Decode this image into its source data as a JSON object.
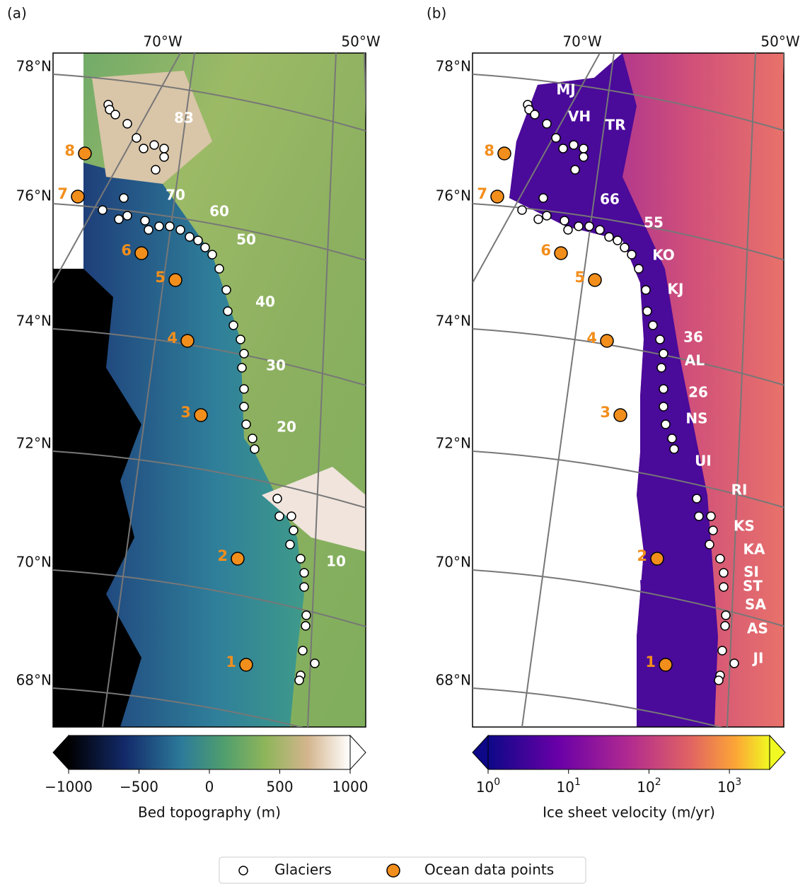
{
  "panels": [
    {
      "label": "(a)",
      "lon_labels": [
        "70°W",
        "50°W"
      ],
      "lat_labels": [
        "78°N",
        "76°N",
        "74°N",
        "72°N",
        "70°N",
        "68°N"
      ],
      "glacier_labels": [
        "83",
        "70",
        "60",
        "50",
        "40",
        "30",
        "20",
        "10"
      ],
      "ocean_labels": [
        "1",
        "2",
        "3",
        "4",
        "5",
        "6",
        "7",
        "8"
      ],
      "colorbar": {
        "label": "Bed topography (m)",
        "scale": "linear",
        "lim": [
          -1000,
          1000
        ],
        "ticks": [
          {
            "value": -1000,
            "label": "−1000"
          },
          {
            "value": -500,
            "label": "−500"
          },
          0,
          500,
          1000
        ]
      }
    },
    {
      "label": "(b)",
      "lon_labels": [
        "70°W",
        "50°W"
      ],
      "lat_labels": [
        "78°N",
        "76°N",
        "74°N",
        "72°N",
        "70°N",
        "68°N"
      ],
      "glacier_labels": [
        "MJ",
        "VH",
        "TR",
        "66",
        "55",
        "KO",
        "KJ",
        "36",
        "AL",
        "26",
        "NS",
        "UI",
        "RI",
        "KS",
        "KA",
        "SI",
        "ST",
        "SA",
        "AS",
        "JI"
      ],
      "ocean_labels": [
        "1",
        "2",
        "3",
        "4",
        "5",
        "6",
        "7",
        "8"
      ],
      "colorbar": {
        "label": "Ice sheet velocity (m/yr)",
        "scale": "log",
        "lim": [
          1,
          3162
        ],
        "ticks": [
          {
            "value": 1,
            "label": "10",
            "exp": "0"
          },
          {
            "value": 10,
            "label": "10",
            "exp": "1"
          },
          {
            "value": 100,
            "label": "10",
            "exp": "2"
          },
          {
            "value": 1000,
            "label": "10",
            "exp": "3"
          }
        ]
      }
    }
  ],
  "legend": [
    "Glaciers",
    "Ocean data points"
  ]
}
